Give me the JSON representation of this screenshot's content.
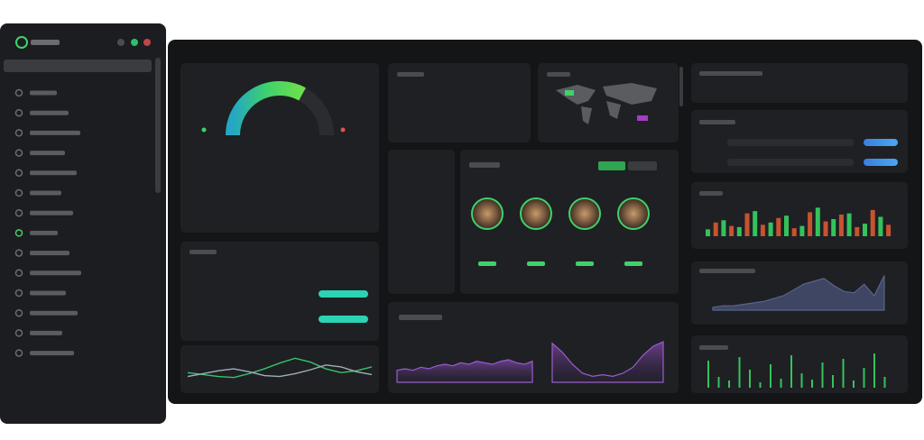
{
  "gauge": {
    "value": 66,
    "max": 100
  },
  "bars": {
    "ymax": 30,
    "series": [
      {
        "color": "#33c35c",
        "values": [
          6,
          14,
          8,
          22,
          12,
          18,
          9,
          25,
          15,
          20,
          11,
          17
        ]
      },
      {
        "color": "#c6532f",
        "values": [
          12,
          9,
          20,
          10,
          16,
          7,
          21,
          13,
          19,
          8,
          23,
          10
        ]
      }
    ]
  },
  "area_right": {
    "ymax": 30,
    "values": [
      2,
      3,
      3,
      4,
      5,
      6,
      8,
      10,
      14,
      18,
      20,
      22,
      17,
      13,
      12,
      18,
      10,
      24
    ]
  },
  "spikes": {
    "ymax": 40,
    "values": [
      30,
      12,
      8,
      34,
      20,
      6,
      26,
      10,
      36,
      16,
      9,
      28,
      14,
      32,
      8,
      22,
      38,
      12
    ]
  },
  "line_small": {
    "ymax": 30,
    "series": [
      {
        "color": "#35c46a",
        "values": [
          10,
          8,
          6,
          5,
          9,
          14,
          20,
          25,
          21,
          14,
          10,
          12,
          16
        ]
      },
      {
        "color": "#9fb0b8",
        "values": [
          6,
          9,
          12,
          14,
          11,
          7,
          6,
          9,
          13,
          18,
          16,
          11,
          8
        ]
      }
    ]
  },
  "purple_left": {
    "ymax": 30,
    "values": [
      8,
      9,
      8,
      10,
      9,
      11,
      12,
      11,
      13,
      12,
      14,
      13,
      12,
      14,
      15,
      13,
      12,
      14
    ]
  },
  "purple_right": {
    "ymax": 30,
    "values": [
      26,
      20,
      12,
      6,
      4,
      5,
      4,
      6,
      10,
      18,
      24,
      27
    ]
  },
  "progress": {
    "max": 100,
    "values": [
      100,
      100
    ]
  }
}
